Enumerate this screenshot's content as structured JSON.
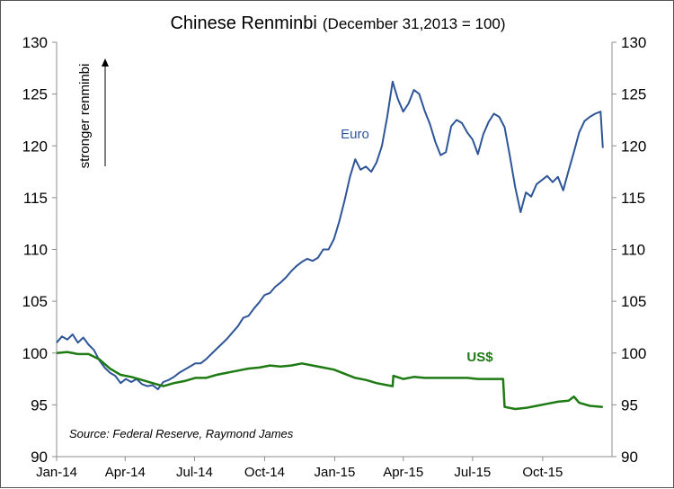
{
  "chart_data": {
    "type": "line",
    "title": "Chinese Renminbi",
    "subtitle": "(December 31,2013 = 100)",
    "ylabel": "stronger renminbi",
    "source": "Source: Federal Reserve, Raymond James",
    "ylim": [
      90,
      130
    ],
    "y_ticks": [
      "90",
      "95",
      "100",
      "105",
      "110",
      "115",
      "120",
      "125",
      "130"
    ],
    "x_tick_labels": [
      "Jan-14",
      "Apr-14",
      "Jul-14",
      "Oct-14",
      "Jan-15",
      "Apr-15",
      "Jul-15",
      "Oct-15"
    ],
    "x_range": [
      "2014-01-01",
      "2015-12-31"
    ],
    "grid": false,
    "colors": {
      "Euro": "#2e5597",
      "US$": "#1e7a12"
    },
    "series": [
      {
        "name": "Euro",
        "label_text": "Euro",
        "points": [
          [
            "2014-01-01",
            101.0
          ],
          [
            "2014-01-08",
            101.6
          ],
          [
            "2014-01-15",
            101.3
          ],
          [
            "2014-01-22",
            101.8
          ],
          [
            "2014-01-29",
            101.0
          ],
          [
            "2014-02-05",
            101.5
          ],
          [
            "2014-02-12",
            100.8
          ],
          [
            "2014-02-19",
            100.3
          ],
          [
            "2014-02-26",
            99.3
          ],
          [
            "2014-03-05",
            98.6
          ],
          [
            "2014-03-12",
            98.1
          ],
          [
            "2014-03-19",
            97.8
          ],
          [
            "2014-03-26",
            97.1
          ],
          [
            "2014-04-02",
            97.5
          ],
          [
            "2014-04-09",
            97.2
          ],
          [
            "2014-04-16",
            97.5
          ],
          [
            "2014-04-23",
            97.0
          ],
          [
            "2014-04-30",
            96.8
          ],
          [
            "2014-05-07",
            96.9
          ],
          [
            "2014-05-14",
            96.5
          ],
          [
            "2014-05-21",
            97.2
          ],
          [
            "2014-05-28",
            97.4
          ],
          [
            "2014-06-04",
            97.7
          ],
          [
            "2014-06-11",
            98.1
          ],
          [
            "2014-06-18",
            98.4
          ],
          [
            "2014-06-25",
            98.7
          ],
          [
            "2014-07-02",
            99.0
          ],
          [
            "2014-07-09",
            99.0
          ],
          [
            "2014-07-16",
            99.4
          ],
          [
            "2014-07-23",
            99.9
          ],
          [
            "2014-07-30",
            100.4
          ],
          [
            "2014-08-06",
            100.9
          ],
          [
            "2014-08-13",
            101.4
          ],
          [
            "2014-08-20",
            102.0
          ],
          [
            "2014-08-27",
            102.6
          ],
          [
            "2014-09-03",
            103.4
          ],
          [
            "2014-09-10",
            103.6
          ],
          [
            "2014-09-17",
            104.3
          ],
          [
            "2014-09-24",
            104.9
          ],
          [
            "2014-10-01",
            105.6
          ],
          [
            "2014-10-08",
            105.8
          ],
          [
            "2014-10-15",
            106.4
          ],
          [
            "2014-10-22",
            106.8
          ],
          [
            "2014-10-29",
            107.3
          ],
          [
            "2014-11-05",
            107.9
          ],
          [
            "2014-11-12",
            108.4
          ],
          [
            "2014-11-19",
            108.8
          ],
          [
            "2014-11-26",
            109.1
          ],
          [
            "2014-12-03",
            108.9
          ],
          [
            "2014-12-10",
            109.2
          ],
          [
            "2014-12-17",
            110.0
          ],
          [
            "2014-12-24",
            110.0
          ],
          [
            "2014-12-31",
            111.0
          ],
          [
            "2015-01-07",
            112.7
          ],
          [
            "2015-01-14",
            114.7
          ],
          [
            "2015-01-21",
            117.0
          ],
          [
            "2015-01-28",
            118.7
          ],
          [
            "2015-02-04",
            117.7
          ],
          [
            "2015-02-11",
            118.0
          ],
          [
            "2015-02-18",
            117.5
          ],
          [
            "2015-02-25",
            118.4
          ],
          [
            "2015-03-04",
            120.0
          ],
          [
            "2015-03-11",
            122.8
          ],
          [
            "2015-03-18",
            126.2
          ],
          [
            "2015-03-25",
            124.5
          ],
          [
            "2015-04-01",
            123.3
          ],
          [
            "2015-04-08",
            124.1
          ],
          [
            "2015-04-15",
            125.4
          ],
          [
            "2015-04-22",
            125.0
          ],
          [
            "2015-04-29",
            123.4
          ],
          [
            "2015-05-06",
            122.1
          ],
          [
            "2015-05-13",
            120.4
          ],
          [
            "2015-05-20",
            119.1
          ],
          [
            "2015-05-27",
            119.4
          ],
          [
            "2015-06-03",
            121.9
          ],
          [
            "2015-06-10",
            122.5
          ],
          [
            "2015-06-17",
            122.2
          ],
          [
            "2015-06-24",
            121.3
          ],
          [
            "2015-07-01",
            120.6
          ],
          [
            "2015-07-08",
            119.2
          ],
          [
            "2015-07-15",
            121.1
          ],
          [
            "2015-07-22",
            122.3
          ],
          [
            "2015-07-29",
            123.1
          ],
          [
            "2015-08-05",
            122.8
          ],
          [
            "2015-08-12",
            121.8
          ],
          [
            "2015-08-19",
            119.0
          ],
          [
            "2015-08-26",
            116.0
          ],
          [
            "2015-09-02",
            113.6
          ],
          [
            "2015-09-09",
            115.5
          ],
          [
            "2015-09-16",
            115.1
          ],
          [
            "2015-09-23",
            116.3
          ],
          [
            "2015-09-30",
            116.7
          ],
          [
            "2015-10-07",
            117.1
          ],
          [
            "2015-10-14",
            116.5
          ],
          [
            "2015-10-21",
            117.0
          ],
          [
            "2015-10-28",
            115.7
          ],
          [
            "2015-11-04",
            117.6
          ],
          [
            "2015-11-11",
            119.4
          ],
          [
            "2015-11-18",
            121.3
          ],
          [
            "2015-11-25",
            122.4
          ],
          [
            "2015-12-02",
            122.8
          ],
          [
            "2015-12-09",
            123.1
          ],
          [
            "2015-12-16",
            123.3
          ],
          [
            "2015-12-19",
            119.8
          ]
        ]
      },
      {
        "name": "US$",
        "label_text": "US$",
        "points": [
          [
            "2014-01-01",
            100.0
          ],
          [
            "2014-01-15",
            100.1
          ],
          [
            "2014-01-29",
            99.9
          ],
          [
            "2014-02-12",
            99.9
          ],
          [
            "2014-02-26",
            99.4
          ],
          [
            "2014-03-12",
            98.5
          ],
          [
            "2014-03-26",
            97.9
          ],
          [
            "2014-04-09",
            97.7
          ],
          [
            "2014-04-23",
            97.4
          ],
          [
            "2014-05-07",
            97.1
          ],
          [
            "2014-05-21",
            96.8
          ],
          [
            "2014-06-04",
            97.1
          ],
          [
            "2014-06-18",
            97.3
          ],
          [
            "2014-07-02",
            97.6
          ],
          [
            "2014-07-16",
            97.6
          ],
          [
            "2014-07-30",
            97.9
          ],
          [
            "2014-08-13",
            98.1
          ],
          [
            "2014-08-27",
            98.3
          ],
          [
            "2014-09-10",
            98.5
          ],
          [
            "2014-09-24",
            98.6
          ],
          [
            "2014-10-08",
            98.8
          ],
          [
            "2014-10-22",
            98.7
          ],
          [
            "2014-11-05",
            98.8
          ],
          [
            "2014-11-19",
            99.0
          ],
          [
            "2014-12-03",
            98.8
          ],
          [
            "2014-12-17",
            98.6
          ],
          [
            "2014-12-31",
            98.4
          ],
          [
            "2015-01-14",
            98.0
          ],
          [
            "2015-01-28",
            97.6
          ],
          [
            "2015-02-11",
            97.4
          ],
          [
            "2015-02-25",
            97.1
          ],
          [
            "2015-03-11",
            96.9
          ],
          [
            "2015-03-18",
            96.8
          ],
          [
            "2015-03-19",
            97.8
          ],
          [
            "2015-04-01",
            97.5
          ],
          [
            "2015-04-15",
            97.7
          ],
          [
            "2015-04-29",
            97.6
          ],
          [
            "2015-05-13",
            97.6
          ],
          [
            "2015-05-27",
            97.6
          ],
          [
            "2015-06-10",
            97.6
          ],
          [
            "2015-06-24",
            97.6
          ],
          [
            "2015-07-08",
            97.5
          ],
          [
            "2015-07-22",
            97.5
          ],
          [
            "2015-08-05",
            97.5
          ],
          [
            "2015-08-10",
            97.5
          ],
          [
            "2015-08-12",
            94.8
          ],
          [
            "2015-08-26",
            94.6
          ],
          [
            "2015-09-09",
            94.7
          ],
          [
            "2015-09-23",
            94.9
          ],
          [
            "2015-10-07",
            95.1
          ],
          [
            "2015-10-21",
            95.3
          ],
          [
            "2015-11-04",
            95.4
          ],
          [
            "2015-11-11",
            95.8
          ],
          [
            "2015-11-18",
            95.2
          ],
          [
            "2015-12-02",
            94.9
          ],
          [
            "2015-12-19",
            94.8
          ]
        ]
      }
    ]
  }
}
